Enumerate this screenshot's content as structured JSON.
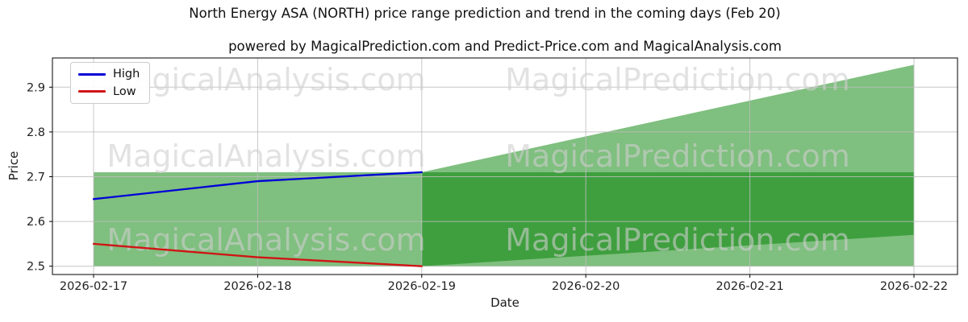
{
  "chart_data": {
    "type": "line",
    "title": "North Energy ASA (NORTH) price range prediction and trend in the coming days (Feb 20)",
    "subtitle": "powered by MagicalPrediction.com and Predict-Price.com and MagicalAnalysis.com",
    "xlabel": "Date",
    "ylabel": "Price",
    "x_categories": [
      "2026-02-17",
      "2026-02-18",
      "2026-02-19",
      "2026-02-20",
      "2026-02-21",
      "2026-02-22"
    ],
    "yticks": [
      "2.5",
      "2.6",
      "2.7",
      "2.8",
      "2.9"
    ],
    "ylim": [
      2.483,
      2.965
    ],
    "grid": true,
    "series": [
      {
        "name": "High",
        "color": "#0000d8",
        "x_index": [
          0,
          1,
          2
        ],
        "values": [
          2.65,
          2.69,
          2.71
        ]
      },
      {
        "name": "Low",
        "color": "#d01414",
        "x_index": [
          0,
          1,
          2
        ],
        "values": [
          2.55,
          2.52,
          2.5
        ]
      }
    ],
    "bands": [
      {
        "name": "historical-range-band",
        "x_index": [
          0,
          5
        ],
        "lower": [
          2.5,
          2.5
        ],
        "upper": [
          2.71,
          2.71
        ],
        "color": "#008000",
        "opacity": 0.5
      },
      {
        "name": "prediction-fan",
        "x_index": [
          2,
          5
        ],
        "lower": [
          2.5,
          2.57
        ],
        "upper": [
          2.71,
          2.95
        ],
        "color": "#008000",
        "opacity": 0.5
      }
    ],
    "legend": {
      "position": "top-left",
      "entries": [
        {
          "label": "High",
          "color": "#0000d8"
        },
        {
          "label": "Low",
          "color": "#d01414"
        }
      ]
    },
    "watermarks": {
      "texts": [
        "MagicalAnalysis.com",
        "MagicalPrediction.com"
      ],
      "color": "#cfcfcf"
    },
    "fill_colors": {
      "single_overlap_appearance": "#80c080",
      "double_overlap_appearance": "#40a040"
    }
  }
}
